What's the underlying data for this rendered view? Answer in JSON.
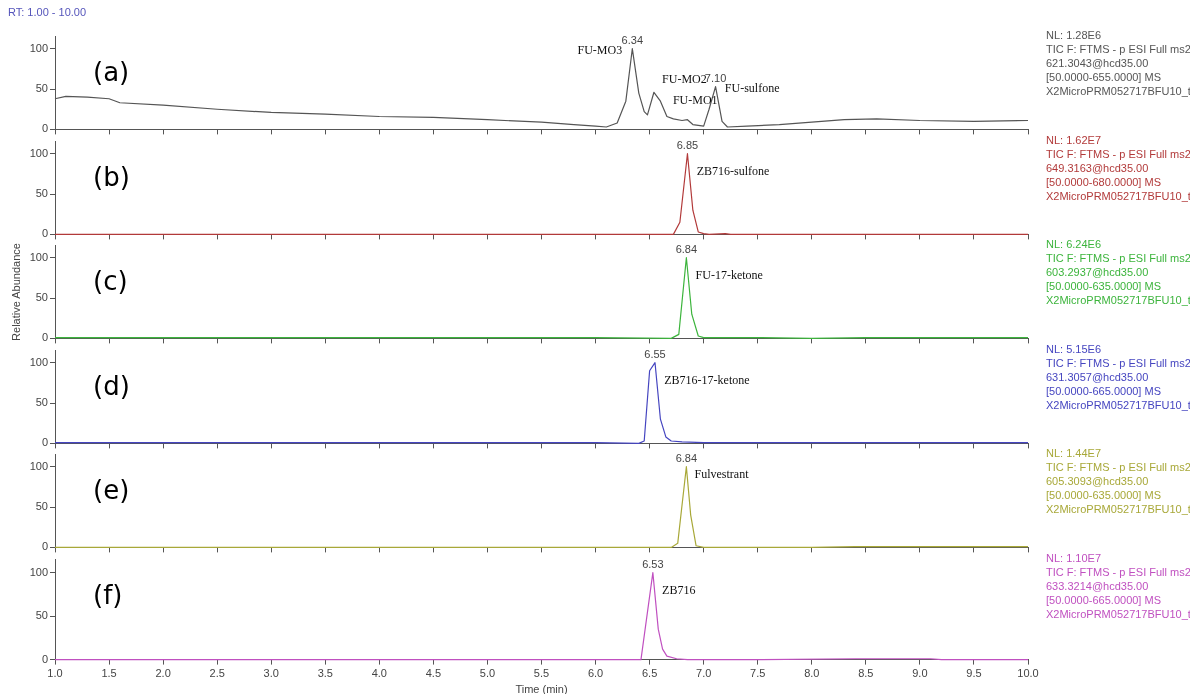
{
  "chart_data": [
    {
      "type": "line",
      "title": "RT: 1.00 - 10.00",
      "color": "#555555",
      "marker": "none",
      "grid": false,
      "legend": false,
      "tick_labels": "y",
      "x": [
        1.0,
        1.1,
        1.3,
        1.5,
        1.6,
        2.0,
        2.5,
        3.0,
        3.5,
        4.0,
        4.5,
        5.0,
        5.5,
        5.8,
        6.0,
        6.1,
        6.2,
        6.28,
        6.34,
        6.4,
        6.45,
        6.48,
        6.54,
        6.6,
        6.66,
        6.72,
        6.8,
        6.85,
        6.9,
        7.0,
        7.05,
        7.11,
        7.17,
        7.22,
        7.4,
        7.7,
        8.0,
        8.3,
        8.6,
        9.0,
        9.5,
        10.0
      ],
      "values": [
        38,
        41,
        40,
        38,
        33,
        30,
        25,
        21,
        19,
        16,
        15,
        12,
        9,
        6,
        4,
        3,
        8,
        35,
        100,
        45,
        22,
        18,
        46,
        35,
        16,
        13,
        11,
        12,
        6,
        4,
        25,
        53,
        10,
        3,
        4,
        6,
        9,
        12,
        13,
        11,
        10,
        11
      ],
      "xlim": [
        1,
        10
      ],
      "ylim": [
        0,
        115
      ],
      "yticks": [
        0,
        50,
        100
      ],
      "xticks": [
        1,
        1.5,
        2,
        2.5,
        3,
        3.5,
        4,
        4.5,
        5,
        5.5,
        6,
        6.5,
        7,
        7.5,
        8,
        8.5,
        9,
        9.5,
        10
      ],
      "annotations": [
        "(a)",
        "NL: 1.28E6",
        "TIC F: FTMS - p ESI Full ms2",
        "621.3043@hcd35.00",
        "[50.0000-655.0000]  MS",
        "X2MicroPRM052717BFU10_t",
        {
          "text": "6.34",
          "x": 6.34,
          "y": 100
        },
        {
          "text": "7.10",
          "x": 7.11,
          "y": 53
        },
        {
          "text": "FU-MO3",
          "x": 6.32,
          "y": 78
        },
        {
          "text": "FU-MO2",
          "x": 6.56,
          "y": 42
        },
        {
          "text": "FU-MO1",
          "x": 6.66,
          "y": 16
        },
        {
          "text": "FU-sulfone",
          "x": 7.14,
          "y": 31
        }
      ]
    },
    {
      "type": "line",
      "color": "#b23a3a",
      "marker": "none",
      "grid": false,
      "legend": false,
      "tick_labels": "y",
      "x": [
        1.0,
        3.0,
        6.0,
        6.72,
        6.78,
        6.85,
        6.9,
        6.95,
        7.0,
        7.05,
        7.2,
        7.25,
        8.0,
        10.0
      ],
      "values": [
        0,
        0,
        0,
        0,
        15,
        100,
        30,
        3,
        1,
        0,
        1,
        0,
        0,
        0
      ],
      "xlim": [
        1,
        10
      ],
      "ylim": [
        0,
        115
      ],
      "yticks": [
        0,
        50,
        100
      ],
      "xticks": [
        1,
        1.5,
        2,
        2.5,
        3,
        3.5,
        4,
        4.5,
        5,
        5.5,
        6,
        6.5,
        7,
        7.5,
        8,
        8.5,
        9,
        9.5,
        10
      ],
      "annotations": [
        "(b)",
        "NL: 1.62E7",
        "TIC F: FTMS - p ESI Full ms2",
        "649.3163@hcd35.00",
        "[50.0000-680.0000]  MS",
        "X2MicroPRM052717BFU10_t",
        {
          "text": "6.85",
          "x": 6.85,
          "y": 100
        },
        {
          "text": "ZB716-sulfone",
          "x": 6.88,
          "y": 58
        }
      ]
    },
    {
      "type": "line",
      "color": "#3cb43c",
      "marker": "none",
      "grid": false,
      "legend": false,
      "tick_labels": "y",
      "ylabel": "Relative Abundance",
      "x": [
        1.0,
        2.0,
        3.0,
        4.0,
        5.0,
        6.0,
        6.7,
        6.77,
        6.84,
        6.89,
        6.95,
        7.0,
        7.5,
        8.0,
        8.5,
        9.0,
        9.5,
        10.0
      ],
      "values": [
        1,
        1,
        1,
        1,
        1,
        1,
        0,
        5,
        100,
        30,
        3,
        1,
        1,
        0,
        1,
        1,
        1,
        1
      ],
      "xlim": [
        1,
        10
      ],
      "ylim": [
        0,
        115
      ],
      "yticks": [
        0,
        50,
        100
      ],
      "xticks": [
        1,
        1.5,
        2,
        2.5,
        3,
        3.5,
        4,
        4.5,
        5,
        5.5,
        6,
        6.5,
        7,
        7.5,
        8,
        8.5,
        9,
        9.5,
        10
      ],
      "annotations": [
        "(c)",
        "NL: 6.24E6",
        "TIC F: FTMS - p ESI Full ms2",
        "603.2937@hcd35.00",
        "[50.0000-635.0000]  MS",
        "X2MicroPRM052717BFU10_t",
        {
          "text": "6.84",
          "x": 6.84,
          "y": 100
        },
        {
          "text": "FU-17-ketone",
          "x": 6.87,
          "y": 58
        }
      ]
    },
    {
      "type": "line",
      "color": "#4545c0",
      "marker": "none",
      "grid": false,
      "legend": false,
      "tick_labels": "y",
      "x": [
        1.0,
        2.0,
        3.0,
        4.0,
        5.0,
        6.0,
        6.4,
        6.45,
        6.5,
        6.55,
        6.6,
        6.65,
        6.7,
        6.8,
        7.0,
        8.0,
        9.0,
        10.0
      ],
      "values": [
        1,
        1,
        1,
        1,
        1,
        1,
        0,
        3,
        90,
        100,
        30,
        8,
        3,
        2,
        1,
        1,
        1,
        1
      ],
      "xlim": [
        1,
        10
      ],
      "ylim": [
        0,
        115
      ],
      "yticks": [
        0,
        50,
        100
      ],
      "xticks": [
        1,
        1.5,
        2,
        2.5,
        3,
        3.5,
        4,
        4.5,
        5,
        5.5,
        6,
        6.5,
        7,
        7.5,
        8,
        8.5,
        9,
        9.5,
        10
      ],
      "annotations": [
        "(d)",
        "NL: 5.15E6",
        "TIC F: FTMS - p ESI Full ms2",
        "631.3057@hcd35.00",
        "[50.0000-665.0000]  MS",
        "X2MicroPRM052717BFU10_t",
        {
          "text": "6.55",
          "x": 6.55,
          "y": 100
        },
        {
          "text": "ZB716-17-ketone",
          "x": 6.58,
          "y": 58
        }
      ]
    },
    {
      "type": "line",
      "color": "#a8a838",
      "marker": "none",
      "grid": false,
      "legend": false,
      "tick_labels": "y",
      "x": [
        1.0,
        3.0,
        6.0,
        6.7,
        6.76,
        6.84,
        6.88,
        6.93,
        7.0,
        8.0,
        8.4,
        9.0,
        9.5,
        10.0
      ],
      "values": [
        0,
        0,
        0,
        0,
        5,
        100,
        40,
        2,
        0,
        0,
        1,
        1,
        1,
        1
      ],
      "xlim": [
        1,
        10
      ],
      "ylim": [
        0,
        115
      ],
      "yticks": [
        0,
        50,
        100
      ],
      "xticks": [
        1,
        1.5,
        2,
        2.5,
        3,
        3.5,
        4,
        4.5,
        5,
        5.5,
        6,
        6.5,
        7,
        7.5,
        8,
        8.5,
        9,
        9.5,
        10
      ],
      "annotations": [
        "(e)",
        "NL: 1.44E7",
        "TIC F: FTMS - p ESI Full ms2",
        "605.3093@hcd35.00",
        "[50.0000-635.0000]  MS",
        "X2MicroPRM052717BFU10_t",
        {
          "text": "6.84",
          "x": 6.84,
          "y": 100
        },
        {
          "text": "Fulvestrant",
          "x": 6.86,
          "y": 70
        }
      ]
    },
    {
      "type": "line",
      "color": "#c050c0",
      "marker": "none",
      "grid": false,
      "legend": false,
      "xlabel": "Time (min)",
      "x": [
        1.0,
        3.0,
        6.0,
        6.42,
        6.53,
        6.58,
        6.62,
        6.66,
        6.75,
        6.85,
        7.5,
        8.4,
        9.1,
        9.2,
        10.0
      ],
      "values": [
        0,
        0,
        0,
        0,
        100,
        35,
        12,
        4,
        1,
        0,
        0,
        1,
        1,
        0,
        0
      ],
      "xlim": [
        1,
        10
      ],
      "ylim": [
        0,
        115
      ],
      "yticks": [
        0,
        50,
        100
      ],
      "xticks": [
        {
          "value": 1,
          "label": "1.0"
        },
        1.5,
        {
          "value": 2,
          "label": "2.0"
        },
        2.5,
        {
          "value": 3,
          "label": "3.0"
        },
        3.5,
        {
          "value": 4,
          "label": "4.0"
        },
        4.5,
        {
          "value": 5,
          "label": "5.0"
        },
        5.5,
        {
          "value": 6,
          "label": "6.0"
        },
        6.5,
        {
          "value": 7,
          "label": "7.0"
        },
        7.5,
        {
          "value": 8,
          "label": "8.0"
        },
        8.5,
        {
          "value": 9,
          "label": "9.0"
        },
        9.5,
        {
          "value": 10,
          "label": "10.0"
        }
      ],
      "annotations": [
        "(f)",
        "NL: 1.10E7",
        "TIC F: FTMS - p ESI Full ms2",
        "633.3214@hcd35.00",
        "[50.0000-665.0000]  MS",
        "X2MicroPRM052717BFU10_t",
        {
          "text": "6.53",
          "x": 6.53,
          "y": 100
        },
        {
          "text": "ZB716",
          "x": 6.56,
          "y": 61
        }
      ]
    }
  ]
}
